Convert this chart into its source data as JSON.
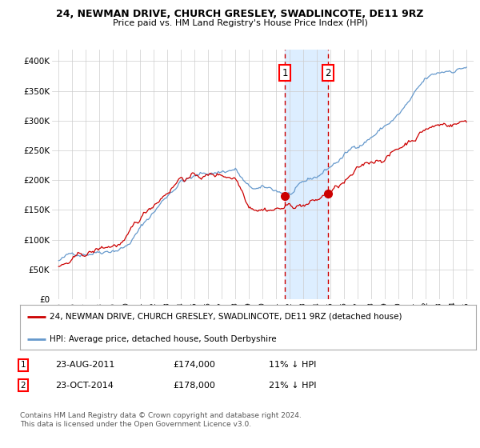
{
  "title1": "24, NEWMAN DRIVE, CHURCH GRESLEY, SWADLINCOTE, DE11 9RZ",
  "title2": "Price paid vs. HM Land Registry's House Price Index (HPI)",
  "legend_line1": "24, NEWMAN DRIVE, CHURCH GRESLEY, SWADLINCOTE, DE11 9RZ (detached house)",
  "legend_line2": "HPI: Average price, detached house, South Derbyshire",
  "sale1_date": "23-AUG-2011",
  "sale1_price": "£174,000",
  "sale1_hpi": "11% ↓ HPI",
  "sale2_date": "23-OCT-2014",
  "sale2_price": "£178,000",
  "sale2_hpi": "21% ↓ HPI",
  "footer": "Contains HM Land Registry data © Crown copyright and database right 2024.\nThis data is licensed under the Open Government Licence v3.0.",
  "sale1_x": 2011.65,
  "sale2_x": 2014.82,
  "sale1_y": 174000,
  "sale2_y": 178000,
  "red_color": "#cc0000",
  "blue_color": "#6699cc",
  "shade_color": "#ddeeff",
  "vline_color": "#cc0000",
  "grid_color": "#cccccc",
  "bg_color": "#ffffff",
  "ylim": [
    0,
    420000
  ],
  "xlim": [
    1994.5,
    2025.5
  ],
  "yticks": [
    0,
    50000,
    100000,
    150000,
    200000,
    250000,
    300000,
    350000,
    400000
  ],
  "ytick_labels": [
    "£0",
    "£50K",
    "£100K",
    "£150K",
    "£200K",
    "£250K",
    "£300K",
    "£350K",
    "£400K"
  ],
  "xticks": [
    1995,
    1996,
    1997,
    1998,
    1999,
    2000,
    2001,
    2002,
    2003,
    2004,
    2005,
    2006,
    2007,
    2008,
    2009,
    2010,
    2011,
    2012,
    2013,
    2014,
    2015,
    2016,
    2017,
    2018,
    2019,
    2020,
    2021,
    2022,
    2023,
    2024,
    2025
  ]
}
